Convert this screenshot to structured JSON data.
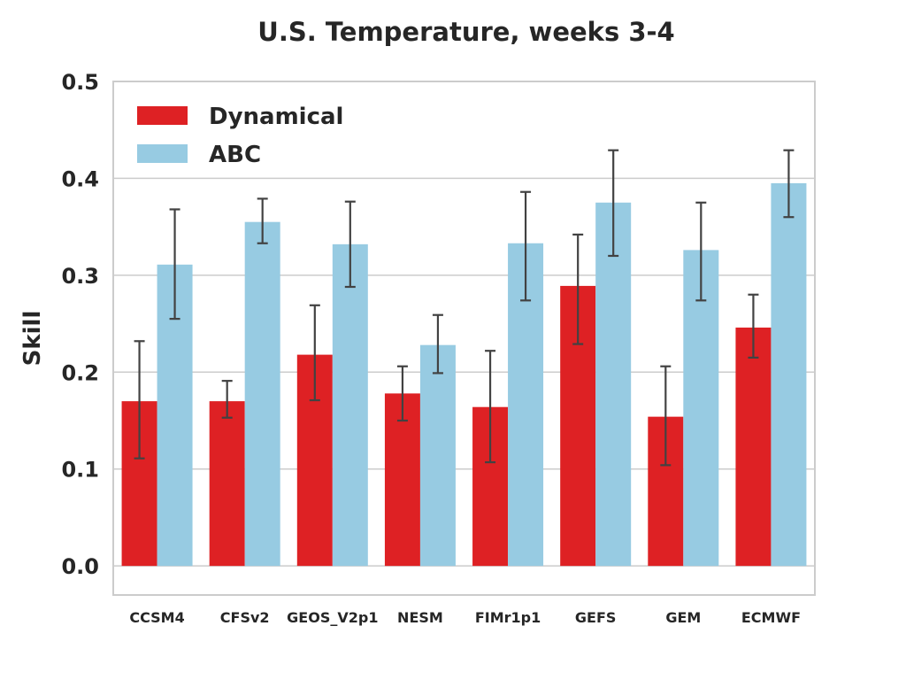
{
  "chart_data": {
    "type": "bar",
    "title": "U.S. Temperature, weeks 3-4",
    "xlabel": "",
    "ylabel": "Skill",
    "ylim": [
      -0.03,
      0.5
    ],
    "yticks": [
      0.0,
      0.1,
      0.2,
      0.3,
      0.4,
      0.5
    ],
    "ytick_labels": [
      "0.0",
      "0.1",
      "0.2",
      "0.3",
      "0.4",
      "0.5"
    ],
    "grid": "horizontal",
    "legend_position": "top-left",
    "categories": [
      "CCSM4",
      "CFSv2",
      "GEOS_V2p1",
      "NESM",
      "FIMr1p1",
      "GEFS",
      "GEM",
      "ECMWF"
    ],
    "series": [
      {
        "name": "Dynamical",
        "color": "#de2124",
        "values": [
          0.17,
          0.17,
          0.218,
          0.178,
          0.164,
          0.289,
          0.154,
          0.246
        ],
        "err_low": [
          0.111,
          0.153,
          0.171,
          0.15,
          0.107,
          0.229,
          0.104,
          0.215
        ],
        "err_high": [
          0.232,
          0.191,
          0.269,
          0.206,
          0.222,
          0.342,
          0.206,
          0.28
        ]
      },
      {
        "name": "ABC",
        "color": "#97cbe2",
        "values": [
          0.311,
          0.355,
          0.332,
          0.228,
          0.333,
          0.375,
          0.326,
          0.395
        ],
        "err_low": [
          0.255,
          0.333,
          0.288,
          0.199,
          0.274,
          0.32,
          0.274,
          0.36
        ],
        "err_high": [
          0.368,
          0.379,
          0.376,
          0.259,
          0.386,
          0.429,
          0.375,
          0.429
        ]
      }
    ]
  }
}
